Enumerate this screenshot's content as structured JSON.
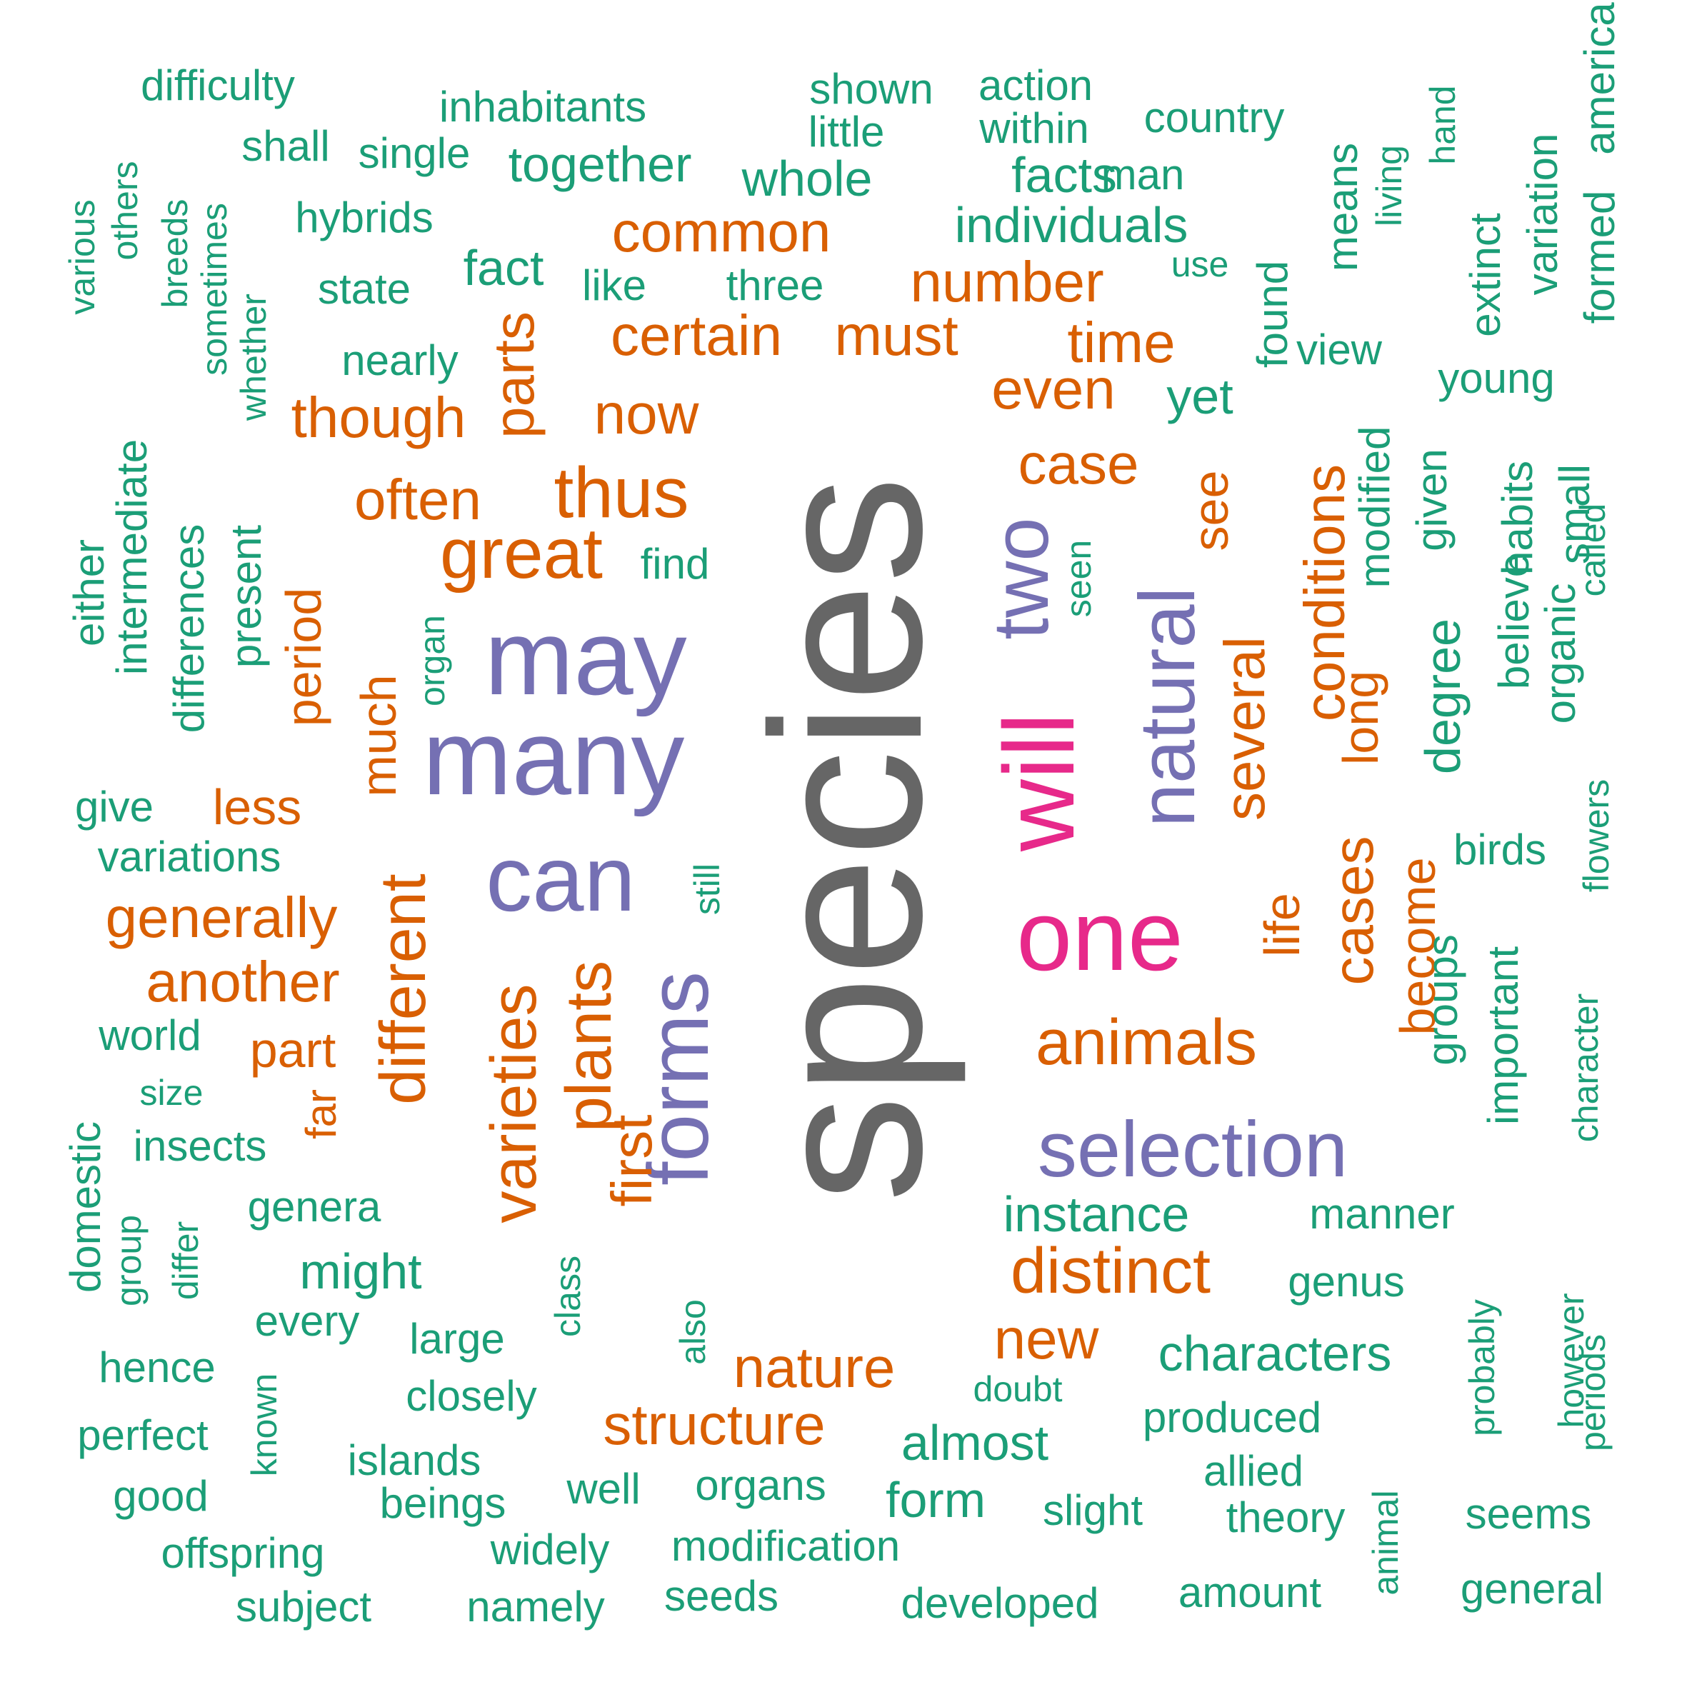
{
  "palette": {
    "gray": "#666666",
    "green": "#1b9e77",
    "orange": "#d95f02",
    "purple": "#7570b3",
    "pink": "#e7298a"
  },
  "words": [
    {
      "text": "species",
      "color": "gray",
      "vertical": true
    },
    {
      "text": "may",
      "color": "purple",
      "vertical": false
    },
    {
      "text": "many",
      "color": "purple",
      "vertical": false
    },
    {
      "text": "can",
      "color": "purple",
      "vertical": false
    },
    {
      "text": "forms",
      "color": "purple",
      "vertical": true
    },
    {
      "text": "two",
      "color": "purple",
      "vertical": true
    },
    {
      "text": "natural",
      "color": "purple",
      "vertical": true
    },
    {
      "text": "selection",
      "color": "purple",
      "vertical": false
    },
    {
      "text": "will",
      "color": "pink",
      "vertical": true
    },
    {
      "text": "one",
      "color": "pink",
      "vertical": false
    },
    {
      "text": "common",
      "color": "orange",
      "vertical": false
    },
    {
      "text": "number",
      "color": "orange",
      "vertical": false
    },
    {
      "text": "certain",
      "color": "orange",
      "vertical": false
    },
    {
      "text": "must",
      "color": "orange",
      "vertical": false
    },
    {
      "text": "time",
      "color": "orange",
      "vertical": false
    },
    {
      "text": "even",
      "color": "orange",
      "vertical": false
    },
    {
      "text": "though",
      "color": "orange",
      "vertical": false
    },
    {
      "text": "parts",
      "color": "orange",
      "vertical": true
    },
    {
      "text": "now",
      "color": "orange",
      "vertical": false
    },
    {
      "text": "thus",
      "color": "orange",
      "vertical": false
    },
    {
      "text": "often",
      "color": "orange",
      "vertical": false
    },
    {
      "text": "great",
      "color": "orange",
      "vertical": false
    },
    {
      "text": "case",
      "color": "orange",
      "vertical": false
    },
    {
      "text": "see",
      "color": "orange",
      "vertical": true
    },
    {
      "text": "conditions",
      "color": "orange",
      "vertical": true
    },
    {
      "text": "several",
      "color": "orange",
      "vertical": true
    },
    {
      "text": "long",
      "color": "orange",
      "vertical": true
    },
    {
      "text": "period",
      "color": "orange",
      "vertical": true
    },
    {
      "text": "much",
      "color": "orange",
      "vertical": true
    },
    {
      "text": "less",
      "color": "orange",
      "vertical": false
    },
    {
      "text": "generally",
      "color": "orange",
      "vertical": false
    },
    {
      "text": "another",
      "color": "orange",
      "vertical": false
    },
    {
      "text": "part",
      "color": "orange",
      "vertical": false
    },
    {
      "text": "far",
      "color": "orange",
      "vertical": true
    },
    {
      "text": "different",
      "color": "orange",
      "vertical": true
    },
    {
      "text": "varieties",
      "color": "orange",
      "vertical": true
    },
    {
      "text": "plants",
      "color": "orange",
      "vertical": true
    },
    {
      "text": "first",
      "color": "orange",
      "vertical": true
    },
    {
      "text": "life",
      "color": "orange",
      "vertical": true
    },
    {
      "text": "cases",
      "color": "orange",
      "vertical": true
    },
    {
      "text": "become",
      "color": "orange",
      "vertical": true
    },
    {
      "text": "animals",
      "color": "orange",
      "vertical": false
    },
    {
      "text": "distinct",
      "color": "orange",
      "vertical": false
    },
    {
      "text": "new",
      "color": "orange",
      "vertical": false
    },
    {
      "text": "nature",
      "color": "orange",
      "vertical": false
    },
    {
      "text": "structure",
      "color": "orange",
      "vertical": false
    },
    {
      "text": "difficulty",
      "color": "green",
      "vertical": false
    },
    {
      "text": "inhabitants",
      "color": "green",
      "vertical": false
    },
    {
      "text": "shown",
      "color": "green",
      "vertical": false
    },
    {
      "text": "action",
      "color": "green",
      "vertical": false
    },
    {
      "text": "little",
      "color": "green",
      "vertical": false
    },
    {
      "text": "within",
      "color": "green",
      "vertical": false
    },
    {
      "text": "country",
      "color": "green",
      "vertical": false
    },
    {
      "text": "shall",
      "color": "green",
      "vertical": false
    },
    {
      "text": "single",
      "color": "green",
      "vertical": false
    },
    {
      "text": "together",
      "color": "green",
      "vertical": false
    },
    {
      "text": "whole",
      "color": "green",
      "vertical": false
    },
    {
      "text": "facts",
      "color": "green",
      "vertical": false
    },
    {
      "text": "man",
      "color": "green",
      "vertical": false
    },
    {
      "text": "hybrids",
      "color": "green",
      "vertical": false
    },
    {
      "text": "individuals",
      "color": "green",
      "vertical": false
    },
    {
      "text": "fact",
      "color": "green",
      "vertical": false
    },
    {
      "text": "use",
      "color": "green",
      "vertical": false
    },
    {
      "text": "state",
      "color": "green",
      "vertical": false
    },
    {
      "text": "like",
      "color": "green",
      "vertical": false
    },
    {
      "text": "three",
      "color": "green",
      "vertical": false
    },
    {
      "text": "nearly",
      "color": "green",
      "vertical": false
    },
    {
      "text": "view",
      "color": "green",
      "vertical": false
    },
    {
      "text": "young",
      "color": "green",
      "vertical": false
    },
    {
      "text": "yet",
      "color": "green",
      "vertical": false
    },
    {
      "text": "find",
      "color": "green",
      "vertical": false
    },
    {
      "text": "give",
      "color": "green",
      "vertical": false
    },
    {
      "text": "variations",
      "color": "green",
      "vertical": false
    },
    {
      "text": "birds",
      "color": "green",
      "vertical": false
    },
    {
      "text": "world",
      "color": "green",
      "vertical": false
    },
    {
      "text": "size",
      "color": "green",
      "vertical": false
    },
    {
      "text": "insects",
      "color": "green",
      "vertical": false
    },
    {
      "text": "genera",
      "color": "green",
      "vertical": false
    },
    {
      "text": "might",
      "color": "green",
      "vertical": false
    },
    {
      "text": "every",
      "color": "green",
      "vertical": false
    },
    {
      "text": "large",
      "color": "green",
      "vertical": false
    },
    {
      "text": "hence",
      "color": "green",
      "vertical": false
    },
    {
      "text": "closely",
      "color": "green",
      "vertical": false
    },
    {
      "text": "perfect",
      "color": "green",
      "vertical": false
    },
    {
      "text": "islands",
      "color": "green",
      "vertical": false
    },
    {
      "text": "good",
      "color": "green",
      "vertical": false
    },
    {
      "text": "beings",
      "color": "green",
      "vertical": false
    },
    {
      "text": "well",
      "color": "green",
      "vertical": false
    },
    {
      "text": "organs",
      "color": "green",
      "vertical": false
    },
    {
      "text": "offspring",
      "color": "green",
      "vertical": false
    },
    {
      "text": "widely",
      "color": "green",
      "vertical": false
    },
    {
      "text": "modification",
      "color": "green",
      "vertical": false
    },
    {
      "text": "subject",
      "color": "green",
      "vertical": false
    },
    {
      "text": "namely",
      "color": "green",
      "vertical": false
    },
    {
      "text": "seeds",
      "color": "green",
      "vertical": false
    },
    {
      "text": "developed",
      "color": "green",
      "vertical": false
    },
    {
      "text": "amount",
      "color": "green",
      "vertical": false
    },
    {
      "text": "general",
      "color": "green",
      "vertical": false
    },
    {
      "text": "seems",
      "color": "green",
      "vertical": false
    },
    {
      "text": "theory",
      "color": "green",
      "vertical": false
    },
    {
      "text": "allied",
      "color": "green",
      "vertical": false
    },
    {
      "text": "slight",
      "color": "green",
      "vertical": false
    },
    {
      "text": "form",
      "color": "green",
      "vertical": false
    },
    {
      "text": "almost",
      "color": "green",
      "vertical": false
    },
    {
      "text": "produced",
      "color": "green",
      "vertical": false
    },
    {
      "text": "doubt",
      "color": "green",
      "vertical": false
    },
    {
      "text": "characters",
      "color": "green",
      "vertical": false
    },
    {
      "text": "genus",
      "color": "green",
      "vertical": false
    },
    {
      "text": "instance",
      "color": "green",
      "vertical": false
    },
    {
      "text": "manner",
      "color": "green",
      "vertical": false
    },
    {
      "text": "various",
      "color": "green",
      "vertical": true
    },
    {
      "text": "others",
      "color": "green",
      "vertical": true
    },
    {
      "text": "breeds",
      "color": "green",
      "vertical": true
    },
    {
      "text": "sometimes",
      "color": "green",
      "vertical": true
    },
    {
      "text": "whether",
      "color": "green",
      "vertical": true
    },
    {
      "text": "intermediate",
      "color": "green",
      "vertical": true
    },
    {
      "text": "either",
      "color": "green",
      "vertical": true
    },
    {
      "text": "differences",
      "color": "green",
      "vertical": true
    },
    {
      "text": "present",
      "color": "green",
      "vertical": true
    },
    {
      "text": "organ",
      "color": "green",
      "vertical": true
    },
    {
      "text": "still",
      "color": "green",
      "vertical": true
    },
    {
      "text": "seen",
      "color": "green",
      "vertical": true
    },
    {
      "text": "found",
      "color": "green",
      "vertical": true
    },
    {
      "text": "means",
      "color": "green",
      "vertical": true
    },
    {
      "text": "living",
      "color": "green",
      "vertical": true
    },
    {
      "text": "hand",
      "color": "green",
      "vertical": true
    },
    {
      "text": "extinct",
      "color": "green",
      "vertical": true
    },
    {
      "text": "variation",
      "color": "green",
      "vertical": true
    },
    {
      "text": "formed",
      "color": "green",
      "vertical": true
    },
    {
      "text": "america",
      "color": "green",
      "vertical": true
    },
    {
      "text": "modified",
      "color": "green",
      "vertical": true
    },
    {
      "text": "given",
      "color": "green",
      "vertical": true
    },
    {
      "text": "habits",
      "color": "green",
      "vertical": true
    },
    {
      "text": "small",
      "color": "green",
      "vertical": true
    },
    {
      "text": "called",
      "color": "green",
      "vertical": true
    },
    {
      "text": "degree",
      "color": "green",
      "vertical": true
    },
    {
      "text": "believe",
      "color": "green",
      "vertical": true
    },
    {
      "text": "organic",
      "color": "green",
      "vertical": true
    },
    {
      "text": "flowers",
      "color": "green",
      "vertical": true
    },
    {
      "text": "groups",
      "color": "green",
      "vertical": true
    },
    {
      "text": "important",
      "color": "green",
      "vertical": true
    },
    {
      "text": "character",
      "color": "green",
      "vertical": true
    },
    {
      "text": "domestic",
      "color": "green",
      "vertical": true
    },
    {
      "text": "group",
      "color": "green",
      "vertical": true
    },
    {
      "text": "differ",
      "color": "green",
      "vertical": true
    },
    {
      "text": "class",
      "color": "green",
      "vertical": true
    },
    {
      "text": "also",
      "color": "green",
      "vertical": true
    },
    {
      "text": "known",
      "color": "green",
      "vertical": true
    },
    {
      "text": "probably",
      "color": "green",
      "vertical": true
    },
    {
      "text": "however",
      "color": "green",
      "vertical": true
    },
    {
      "text": "periods",
      "color": "green",
      "vertical": true
    },
    {
      "text": "animal",
      "color": "green",
      "vertical": true
    }
  ]
}
